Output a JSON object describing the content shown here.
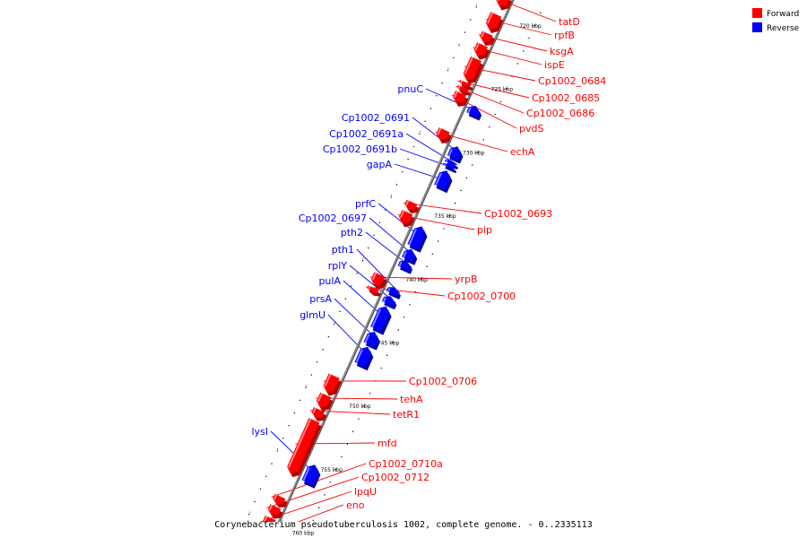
{
  "caption": "Corynebacterium pseudotuberculosis 1002, complete genome. - 0..2335113",
  "legend": {
    "items": [
      {
        "label": "Forward",
        "color": "#ff0000"
      },
      {
        "label": "Reverse",
        "color": "#0000ff"
      }
    ]
  },
  "colors": {
    "forward": "#ff0000",
    "forward_dark": "#b30000",
    "forward_light": "#ff8080",
    "reverse": "#0000ff",
    "reverse_dark": "#0000a8",
    "reverse_light": "#8080ff",
    "backbone": "#888888"
  },
  "axis": {
    "start_kbp": 718.4,
    "end_kbp": 761.8,
    "ticks": [
      {
        "label": "720 kbp",
        "kbp": 720
      },
      {
        "label": "725 kbp",
        "kbp": 725
      },
      {
        "label": "730 kbp",
        "kbp": 730
      },
      {
        "label": "735 kbp",
        "kbp": 735
      },
      {
        "label": "740 kbp",
        "kbp": 740
      },
      {
        "label": "745 kbp",
        "kbp": 745
      },
      {
        "label": "750 kbp",
        "kbp": 750
      },
      {
        "label": "755 kbp",
        "kbp": 755
      },
      {
        "label": "760 kbp",
        "kbp": 760
      }
    ]
  },
  "genes": [
    {
      "name": "tatD",
      "strand": "forward",
      "start_kbp": 718.9,
      "end_kbp": 719.8
    },
    {
      "name": "rpfB",
      "strand": "forward",
      "start_kbp": 720.4,
      "end_kbp": 721.6
    },
    {
      "name": "ksgA",
      "strand": "forward",
      "start_kbp": 721.9,
      "end_kbp": 722.6
    },
    {
      "name": "ispE",
      "strand": "forward",
      "start_kbp": 722.8,
      "end_kbp": 723.7
    },
    {
      "name": "Cp1002_0684",
      "strand": "forward",
      "start_kbp": 723.9,
      "end_kbp": 725.6
    },
    {
      "name": "Cp1002_0685",
      "strand": "forward",
      "start_kbp": 725.75,
      "end_kbp": 726.05
    },
    {
      "name": "Cp1002_0686",
      "strand": "forward",
      "start_kbp": 726.15,
      "end_kbp": 726.45
    },
    {
      "name": "pvdS",
      "strand": "forward",
      "start_kbp": 726.6,
      "end_kbp": 727.4
    },
    {
      "name": "echA",
      "strand": "forward",
      "start_kbp": 729.5,
      "end_kbp": 730.3
    },
    {
      "name": "pnuC",
      "strand": "reverse",
      "start_kbp": 727.0,
      "end_kbp": 727.7
    },
    {
      "name": "Cp1002_0691",
      "strand": "reverse",
      "start_kbp": 730.2,
      "end_kbp": 731.1
    },
    {
      "name": "Cp1002_0691a",
      "strand": "reverse",
      "start_kbp": 731.3,
      "end_kbp": 731.55
    },
    {
      "name": "Cp1002_0691b",
      "strand": "reverse",
      "start_kbp": 731.6,
      "end_kbp": 731.85
    },
    {
      "name": "gapA",
      "strand": "reverse",
      "start_kbp": 732.1,
      "end_kbp": 733.4
    },
    {
      "name": "Cp1002_0693",
      "strand": "forward",
      "start_kbp": 735.2,
      "end_kbp": 735.8
    },
    {
      "name": "pip",
      "strand": "forward",
      "start_kbp": 736.0,
      "end_kbp": 736.9
    },
    {
      "name": "prfC",
      "strand": "reverse",
      "start_kbp": 736.5,
      "end_kbp": 738.1
    },
    {
      "name": "Cp1002_0697",
      "strand": "reverse",
      "start_kbp": 738.3,
      "end_kbp": 739.1
    },
    {
      "name": "pth2",
      "strand": "reverse",
      "start_kbp": 739.2,
      "end_kbp": 739.8
    },
    {
      "name": "pth1",
      "strand": "reverse",
      "start_kbp": 741.3,
      "end_kbp": 741.8
    },
    {
      "name": "rplY",
      "strand": "reverse",
      "start_kbp": 742.0,
      "end_kbp": 742.6
    },
    {
      "name": "yrpB",
      "strand": "forward",
      "start_kbp": 740.9,
      "end_kbp": 741.8
    },
    {
      "name": "Cp1002_0700",
      "strand": "forward",
      "start_kbp": 741.95,
      "end_kbp": 742.3
    },
    {
      "name": "pulA",
      "strand": "reverse",
      "start_kbp": 742.8,
      "end_kbp": 744.6
    },
    {
      "name": "prsA",
      "strand": "reverse",
      "start_kbp": 744.8,
      "end_kbp": 745.8
    },
    {
      "name": "glmU",
      "strand": "reverse",
      "start_kbp": 746.0,
      "end_kbp": 747.4
    },
    {
      "name": "Cp1002_0706",
      "strand": "forward",
      "start_kbp": 748.9,
      "end_kbp": 750.2
    },
    {
      "name": "tehA",
      "strand": "forward",
      "start_kbp": 750.4,
      "end_kbp": 751.4
    },
    {
      "name": "tetR1",
      "strand": "forward",
      "start_kbp": 751.55,
      "end_kbp": 752.2
    },
    {
      "name": "mfd",
      "strand": "forward",
      "start_kbp": 752.4,
      "end_kbp": 756.6
    },
    {
      "name": "lysI",
      "strand": "reverse",
      "start_kbp": 755.3,
      "end_kbp": 756.7
    },
    {
      "name": "Cp1002_0710a",
      "strand": "forward",
      "start_kbp": 758.4,
      "end_kbp": 759.0
    },
    {
      "name": "Cp1002_0712",
      "strand": "forward",
      "start_kbp": 759.2,
      "end_kbp": 759.9
    },
    {
      "name": "lpqU",
      "strand": "forward",
      "start_kbp": 760.1,
      "end_kbp": 761.2
    },
    {
      "name": "eno",
      "strand": "forward",
      "start_kbp": 761.4,
      "end_kbp": 762.6
    }
  ]
}
